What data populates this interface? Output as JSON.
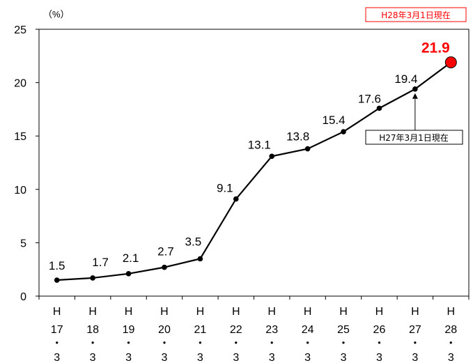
{
  "chart_data": {
    "type": "line",
    "y_unit": "（%）",
    "ylim": [
      0,
      25
    ],
    "yticks": [
      0,
      5,
      10,
      15,
      20,
      25
    ],
    "grid": false,
    "categories": [
      [
        "H",
        "17",
        "・",
        "3"
      ],
      [
        "H",
        "18",
        "・",
        "3"
      ],
      [
        "H",
        "19",
        "・",
        "3"
      ],
      [
        "H",
        "20",
        "・",
        "3"
      ],
      [
        "H",
        "21",
        "・",
        "3"
      ],
      [
        "H",
        "22",
        "・",
        "3"
      ],
      [
        "H",
        "23",
        "・",
        "3"
      ],
      [
        "H",
        "24",
        "・",
        "3"
      ],
      [
        "H",
        "25",
        "・",
        "3"
      ],
      [
        "H",
        "26",
        "・",
        "3"
      ],
      [
        "H",
        "27",
        "・",
        "3"
      ],
      [
        "H",
        "28",
        "・",
        "3"
      ]
    ],
    "series": [
      {
        "values": [
          1.5,
          1.7,
          2.1,
          2.7,
          3.5,
          9.1,
          13.1,
          13.8,
          15.4,
          17.6,
          19.4,
          21.9
        ],
        "labels": [
          "1.5",
          "1.7",
          "2.1",
          "2.7",
          "3.5",
          "9.1",
          "13.1",
          "13.8",
          "15.4",
          "17.6",
          "19.4",
          "21.9"
        ]
      }
    ],
    "annotations": {
      "current": "H28年3月1日現在",
      "previous": "H27年3月1日現在"
    },
    "colors": {
      "line": "#000000",
      "highlight_fill": "#ff0000",
      "current_note_border": "#ff0000",
      "current_note_text": "#ff0000"
    }
  }
}
